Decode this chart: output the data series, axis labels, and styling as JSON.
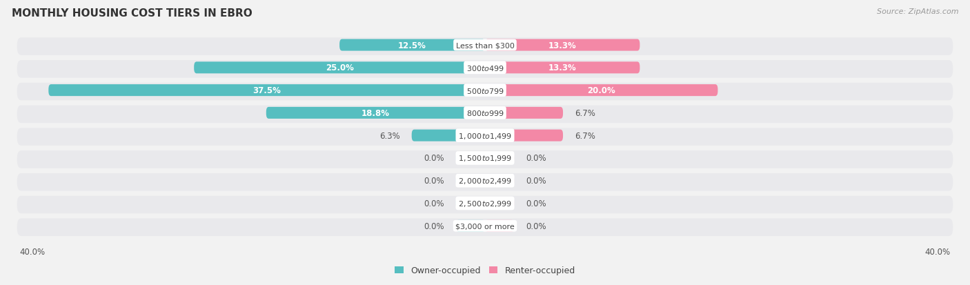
{
  "title": "MONTHLY HOUSING COST TIERS IN EBRO",
  "source": "Source: ZipAtlas.com",
  "categories": [
    "Less than $300",
    "$300 to $499",
    "$500 to $799",
    "$800 to $999",
    "$1,000 to $1,499",
    "$1,500 to $1,999",
    "$2,000 to $2,499",
    "$2,500 to $2,999",
    "$3,000 or more"
  ],
  "owner_values": [
    12.5,
    25.0,
    37.5,
    18.8,
    6.3,
    0.0,
    0.0,
    0.0,
    0.0
  ],
  "renter_values": [
    13.3,
    13.3,
    20.0,
    6.7,
    6.7,
    0.0,
    0.0,
    0.0,
    0.0
  ],
  "owner_color": "#56bec0",
  "renter_color": "#f388a6",
  "owner_color_light": "#a8dfe0",
  "renter_color_light": "#f9c0d0",
  "axis_max": 40.0,
  "bg_color": "#f2f2f2",
  "row_bg_light": "#e8e8e8",
  "row_bg_white": "#ffffff",
  "title_fontsize": 11,
  "source_fontsize": 8,
  "bar_label_fontsize": 8.5,
  "category_fontsize": 8,
  "axis_label_fontsize": 8.5,
  "legend_fontsize": 9,
  "zero_stub": 2.5
}
